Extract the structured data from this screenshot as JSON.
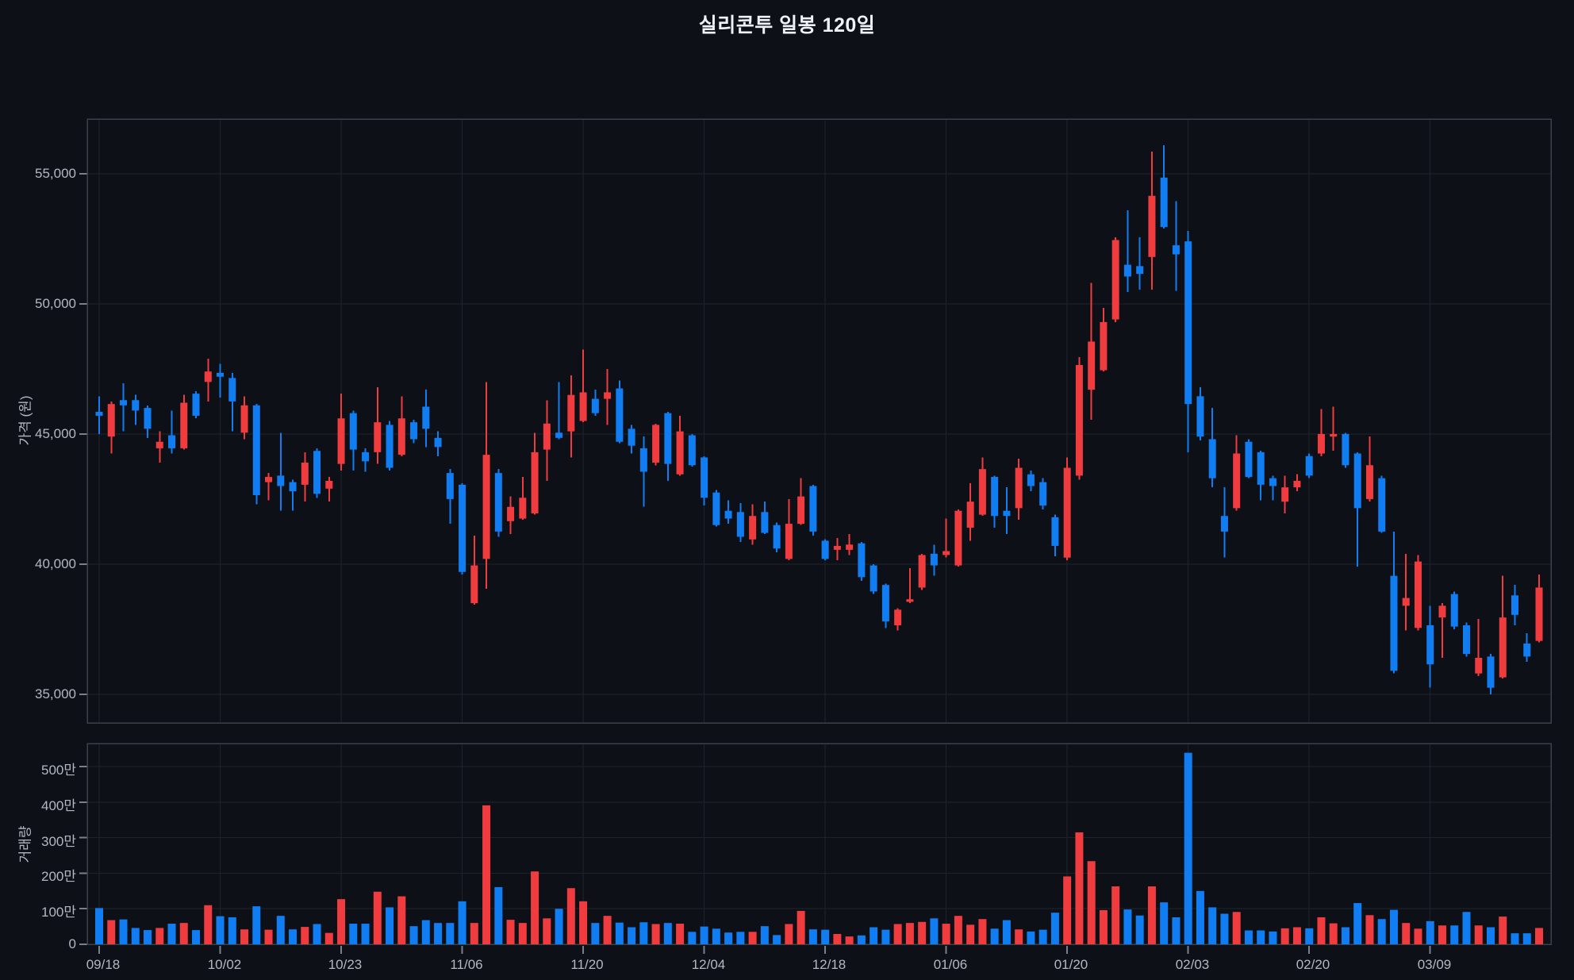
{
  "title": "실리콘투 일봉 120일",
  "colors": {
    "background": "#0d1117",
    "up": "#f03b3f",
    "down": "#107df2",
    "grid": "#1e232b",
    "frame": "#3a414b",
    "tick_mark": "#7a8089",
    "axis_text": "#b2b8c2",
    "title_text": "#eef1f6"
  },
  "price_axis": {
    "title": "가격 (원)",
    "ticks": [
      {
        "label": "55,000",
        "value": 55000
      },
      {
        "label": "50,000",
        "value": 50000
      },
      {
        "label": "45,000",
        "value": 45000
      },
      {
        "label": "40,000",
        "value": 40000
      },
      {
        "label": "35,000",
        "value": 35000
      }
    ]
  },
  "volume_axis": {
    "title": "거래량",
    "ticks": [
      {
        "label": "500만",
        "value": 5000000
      },
      {
        "label": "400만",
        "value": 4000000
      },
      {
        "label": "300만",
        "value": 3000000
      },
      {
        "label": "200만",
        "value": 2000000
      },
      {
        "label": "100만",
        "value": 1000000
      },
      {
        "label": "0",
        "value": 0
      }
    ]
  },
  "x_axis": {
    "labels": [
      {
        "index": 0,
        "text": "09/18"
      },
      {
        "index": 10,
        "text": "10/02"
      },
      {
        "index": 20,
        "text": "10/23"
      },
      {
        "index": 30,
        "text": "11/06"
      },
      {
        "index": 40,
        "text": "11/20"
      },
      {
        "index": 50,
        "text": "12/04"
      },
      {
        "index": 60,
        "text": "12/18"
      },
      {
        "index": 70,
        "text": "01/06"
      },
      {
        "index": 80,
        "text": "01/20"
      },
      {
        "index": 90,
        "text": "02/03"
      },
      {
        "index": 100,
        "text": "02/20"
      },
      {
        "index": 110,
        "text": "03/09"
      }
    ]
  },
  "chart_data": {
    "type": "candlestick+volume-bar",
    "symbol": "실리콘투",
    "period": "일봉 120일",
    "up_means": "close >= open (red)",
    "down_means": "close < open (blue)",
    "volume_unit": 10000,
    "price_ylim": [
      33900,
      57100
    ],
    "volume_ylim_units": [
      0,
      565
    ],
    "grid": true,
    "candles_ohlcv": [
      [
        45850,
        46450,
        45000,
        45700,
        102
      ],
      [
        44900,
        46250,
        44250,
        46150,
        68
      ],
      [
        46300,
        46950,
        45100,
        46100,
        70
      ],
      [
        46300,
        46500,
        45350,
        45900,
        46
      ],
      [
        46000,
        46100,
        44850,
        45200,
        40
      ],
      [
        44450,
        45100,
        43900,
        44700,
        46
      ],
      [
        44950,
        45900,
        44250,
        44450,
        58
      ],
      [
        44450,
        46500,
        44400,
        46200,
        60
      ],
      [
        46550,
        46650,
        45600,
        45700,
        40
      ],
      [
        47000,
        47900,
        46250,
        47400,
        110
      ],
      [
        47350,
        47700,
        46400,
        47200,
        79
      ],
      [
        47150,
        47350,
        45100,
        46250,
        76
      ],
      [
        45050,
        46450,
        44800,
        46100,
        42
      ],
      [
        46100,
        46150,
        42300,
        42650,
        107
      ],
      [
        43150,
        43500,
        42450,
        43350,
        41
      ],
      [
        43400,
        45050,
        42050,
        43000,
        80
      ],
      [
        43150,
        43250,
        42050,
        42800,
        42
      ],
      [
        43050,
        44300,
        42400,
        43900,
        49
      ],
      [
        44350,
        44450,
        42550,
        42700,
        57
      ],
      [
        42900,
        43350,
        42400,
        43200,
        32
      ],
      [
        43850,
        46550,
        43600,
        45600,
        127
      ],
      [
        45800,
        45900,
        43600,
        44400,
        58
      ],
      [
        44300,
        44450,
        43550,
        43950,
        58
      ],
      [
        44300,
        46800,
        43850,
        45450,
        148
      ],
      [
        45350,
        45500,
        43600,
        43700,
        104
      ],
      [
        44200,
        46450,
        44150,
        45600,
        135
      ],
      [
        45450,
        45550,
        44650,
        44800,
        51
      ],
      [
        46050,
        46700,
        44500,
        45200,
        68
      ],
      [
        44850,
        45100,
        44150,
        44500,
        60
      ],
      [
        43500,
        43650,
        41550,
        42500,
        60
      ],
      [
        43050,
        43100,
        39600,
        39700,
        121
      ],
      [
        38500,
        41100,
        38450,
        39950,
        60
      ],
      [
        40200,
        46990,
        39050,
        44200,
        391
      ],
      [
        43500,
        43650,
        41050,
        41250,
        161
      ],
      [
        41650,
        42600,
        41150,
        42200,
        69
      ],
      [
        41750,
        43350,
        41700,
        42550,
        60
      ],
      [
        41950,
        45050,
        41900,
        44300,
        205
      ],
      [
        44400,
        46300,
        43200,
        45400,
        73
      ],
      [
        45050,
        47000,
        44800,
        44850,
        100
      ],
      [
        45100,
        47250,
        44100,
        46500,
        158
      ],
      [
        45500,
        48250,
        45450,
        46600,
        121
      ],
      [
        46350,
        46700,
        45700,
        45800,
        60
      ],
      [
        46350,
        47500,
        45350,
        46600,
        80
      ],
      [
        46750,
        47050,
        44650,
        44700,
        61
      ],
      [
        45200,
        45350,
        44250,
        44550,
        48
      ],
      [
        44450,
        44900,
        42200,
        43550,
        62
      ],
      [
        43900,
        45400,
        43800,
        45350,
        57
      ],
      [
        45800,
        45850,
        43200,
        43850,
        60
      ],
      [
        43450,
        45700,
        43400,
        45100,
        58
      ],
      [
        44950,
        45000,
        43750,
        43800,
        35
      ],
      [
        44100,
        44150,
        42250,
        42550,
        50
      ],
      [
        42750,
        42850,
        41450,
        41500,
        44
      ],
      [
        42050,
        42450,
        41550,
        41750,
        33
      ],
      [
        42000,
        42350,
        40850,
        41050,
        35
      ],
      [
        40950,
        42300,
        40750,
        41850,
        35
      ],
      [
        42000,
        42400,
        41150,
        41200,
        51
      ],
      [
        41500,
        41600,
        40450,
        40600,
        26
      ],
      [
        40200,
        42500,
        40150,
        41550,
        57
      ],
      [
        41550,
        43300,
        41500,
        42600,
        94
      ],
      [
        43000,
        43050,
        41100,
        41250,
        42
      ],
      [
        40900,
        40950,
        40150,
        40200,
        41
      ],
      [
        40550,
        41000,
        40150,
        40700,
        29
      ],
      [
        40550,
        41150,
        40350,
        40750,
        22
      ],
      [
        40800,
        40850,
        39350,
        39500,
        25
      ],
      [
        39950,
        40000,
        38850,
        38950,
        48
      ],
      [
        39200,
        39250,
        37550,
        37800,
        41
      ],
      [
        37650,
        38300,
        37450,
        38250,
        57
      ],
      [
        38550,
        39850,
        38500,
        38650,
        60
      ],
      [
        39100,
        40400,
        39000,
        40350,
        63
      ],
      [
        40400,
        40750,
        39550,
        39950,
        73
      ],
      [
        40350,
        41750,
        40250,
        40500,
        58
      ],
      [
        39950,
        42100,
        39900,
        42050,
        80
      ],
      [
        41400,
        43100,
        40900,
        42400,
        55
      ],
      [
        41900,
        44100,
        41850,
        43650,
        71
      ],
      [
        43350,
        43400,
        41400,
        41850,
        44
      ],
      [
        42050,
        42950,
        41150,
        41850,
        68
      ],
      [
        42150,
        44050,
        41700,
        43700,
        42
      ],
      [
        43450,
        43600,
        42800,
        43000,
        36
      ],
      [
        43150,
        43300,
        42100,
        42250,
        41
      ],
      [
        41800,
        41900,
        40300,
        40700,
        89
      ],
      [
        40250,
        44100,
        40150,
        43700,
        191
      ],
      [
        43400,
        47950,
        43250,
        47650,
        315
      ],
      [
        46700,
        50800,
        45550,
        48550,
        234
      ],
      [
        47450,
        49850,
        47400,
        49300,
        96
      ],
      [
        49400,
        52550,
        49300,
        52450,
        163
      ],
      [
        51500,
        53600,
        50450,
        51050,
        98
      ],
      [
        51450,
        52550,
        50550,
        51150,
        81
      ],
      [
        51800,
        55850,
        50550,
        54150,
        163
      ],
      [
        54850,
        56100,
        52900,
        52950,
        118
      ],
      [
        52250,
        53950,
        50500,
        51900,
        76
      ],
      [
        52400,
        52800,
        44300,
        46150,
        539
      ],
      [
        46450,
        46800,
        44750,
        44900,
        150
      ],
      [
        44800,
        46000,
        42950,
        43300,
        104
      ],
      [
        41850,
        42950,
        40250,
        41250,
        86
      ],
      [
        42150,
        44950,
        42050,
        44250,
        91
      ],
      [
        44700,
        44800,
        43300,
        43350,
        39
      ],
      [
        44300,
        44350,
        42450,
        43050,
        39
      ],
      [
        43300,
        43400,
        42450,
        43000,
        36
      ],
      [
        42400,
        43400,
        41950,
        42950,
        45
      ],
      [
        42950,
        43450,
        42800,
        43200,
        48
      ],
      [
        44150,
        44250,
        43300,
        43400,
        45
      ],
      [
        44250,
        45950,
        44150,
        45000,
        76
      ],
      [
        44900,
        46050,
        44350,
        45000,
        59
      ],
      [
        45000,
        45050,
        43700,
        43800,
        48
      ],
      [
        44250,
        44300,
        39900,
        42150,
        116
      ],
      [
        42500,
        44900,
        42400,
        43800,
        82
      ],
      [
        43300,
        43400,
        41200,
        41250,
        71
      ],
      [
        39550,
        41250,
        35800,
        35900,
        97
      ],
      [
        38400,
        40400,
        37450,
        38700,
        60
      ],
      [
        37550,
        40350,
        37450,
        40100,
        44
      ],
      [
        37650,
        38400,
        35250,
        36150,
        65
      ],
      [
        37950,
        38500,
        36400,
        38400,
        53
      ],
      [
        38850,
        38950,
        37500,
        37600,
        53
      ],
      [
        37650,
        37750,
        36450,
        36550,
        91
      ],
      [
        35800,
        37900,
        35700,
        36400,
        53
      ],
      [
        36450,
        36550,
        35000,
        35250,
        48
      ],
      [
        35650,
        39550,
        35600,
        37950,
        78
      ],
      [
        38800,
        39200,
        37650,
        38050,
        31
      ],
      [
        36950,
        37350,
        36250,
        36450,
        31
      ],
      [
        37050,
        39600,
        37000,
        39100,
        46
      ]
    ]
  }
}
